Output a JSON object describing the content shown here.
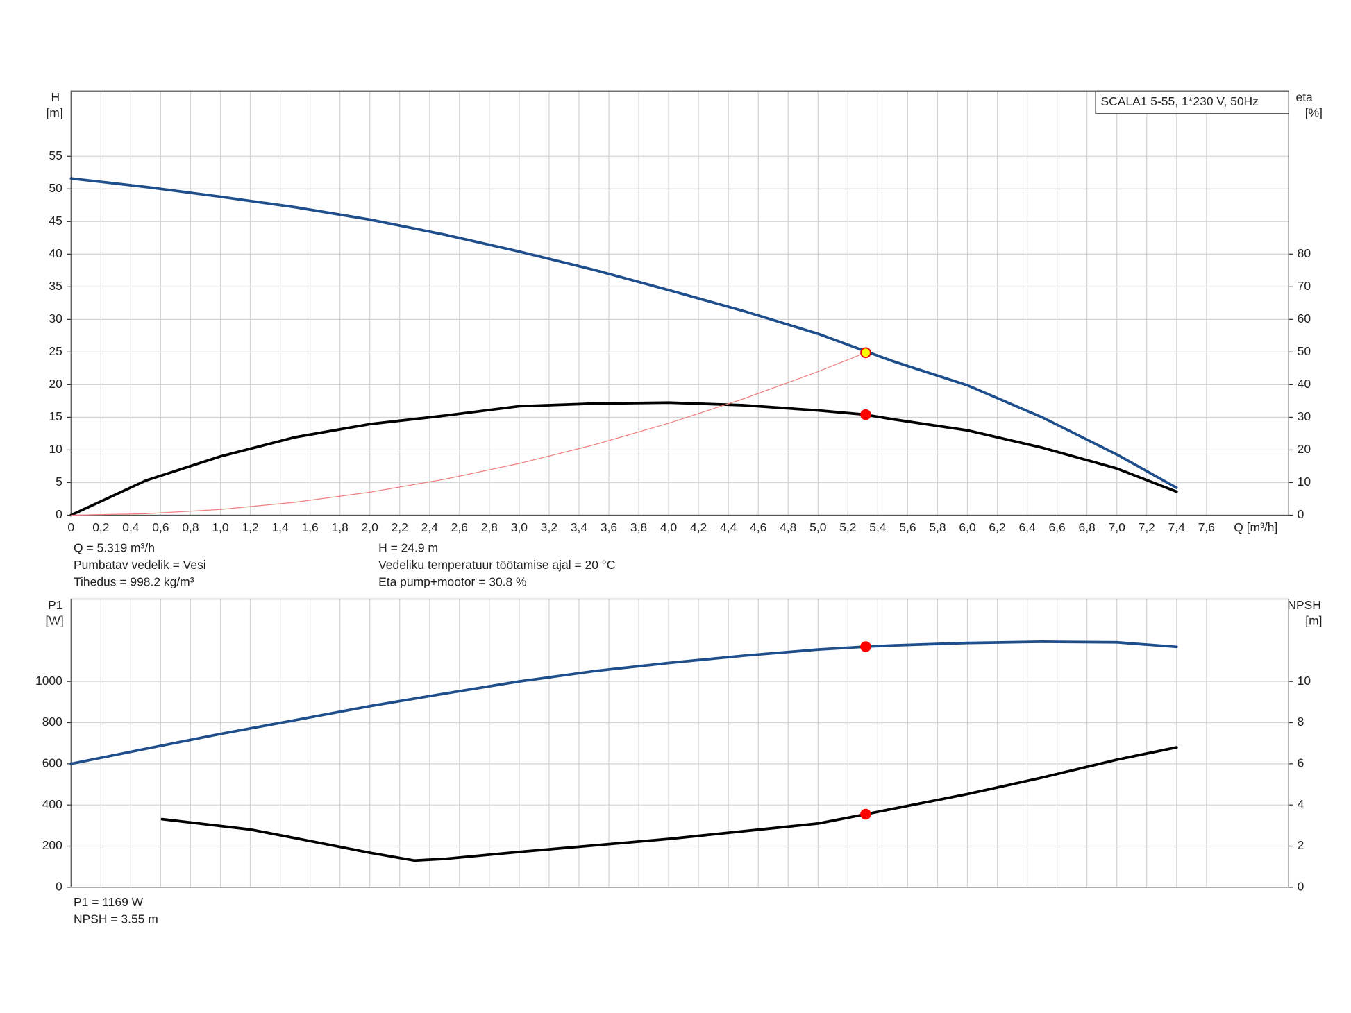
{
  "chart_data": [
    {
      "type": "line",
      "y_label": [
        "H",
        "[m]"
      ],
      "y2_label": [
        "eta",
        "[%]"
      ],
      "x_label": "Q [m³/h]",
      "model_label": "SCALA1 5-55, 1*230 V, 50Hz",
      "xlim": [
        0,
        8.15
      ],
      "xticks": [
        0,
        {
          "value": 0.2,
          "label": "0,2"
        },
        {
          "value": 0.4,
          "label": "0,4"
        },
        {
          "value": 0.6,
          "label": "0,6"
        },
        {
          "value": 0.8,
          "label": "0,8"
        },
        {
          "value": 1.0,
          "label": "1,0"
        },
        {
          "value": 1.2,
          "label": "1,2"
        },
        {
          "value": 1.4,
          "label": "1,4"
        },
        {
          "value": 1.6,
          "label": "1,6"
        },
        {
          "value": 1.8,
          "label": "1,8"
        },
        {
          "value": 2.0,
          "label": "2,0"
        },
        {
          "value": 2.2,
          "label": "2,2"
        },
        {
          "value": 2.4,
          "label": "2,4"
        },
        {
          "value": 2.6,
          "label": "2,6"
        },
        {
          "value": 2.8,
          "label": "2,8"
        },
        {
          "value": 3.0,
          "label": "3,0"
        },
        {
          "value": 3.2,
          "label": "3,2"
        },
        {
          "value": 3.4,
          "label": "3,4"
        },
        {
          "value": 3.6,
          "label": "3,6"
        },
        {
          "value": 3.8,
          "label": "3,8"
        },
        {
          "value": 4.0,
          "label": "4,0"
        },
        {
          "value": 4.2,
          "label": "4,2"
        },
        {
          "value": 4.4,
          "label": "4,4"
        },
        {
          "value": 4.6,
          "label": "4,6"
        },
        {
          "value": 4.8,
          "label": "4,8"
        },
        {
          "value": 5.0,
          "label": "5,0"
        },
        {
          "value": 5.2,
          "label": "5,2"
        },
        {
          "value": 5.4,
          "label": "5,4"
        },
        {
          "value": 5.6,
          "label": "5,6"
        },
        {
          "value": 5.8,
          "label": "5,8"
        },
        {
          "value": 6.0,
          "label": "6,0"
        },
        {
          "value": 6.2,
          "label": "6,2"
        },
        {
          "value": 6.4,
          "label": "6,4"
        },
        {
          "value": 6.6,
          "label": "6,6"
        },
        {
          "value": 6.8,
          "label": "6,8"
        },
        {
          "value": 7.0,
          "label": "7,0"
        },
        {
          "value": 7.2,
          "label": "7,2"
        },
        {
          "value": 7.4,
          "label": "7,4"
        },
        {
          "value": 7.6,
          "label": "7,6"
        }
      ],
      "ylim": [
        0,
        65
      ],
      "yticks": [
        0,
        5,
        10,
        15,
        20,
        25,
        30,
        35,
        40,
        45,
        50,
        55
      ],
      "y2lim": [
        0,
        130
      ],
      "y2ticks": [
        0,
        10,
        20,
        30,
        40,
        50,
        60,
        70,
        80
      ],
      "grid": true,
      "series": [
        {
          "color": "#1f4e8c",
          "width": 3,
          "x": [
            0,
            0.5,
            1,
            1.5,
            2,
            2.5,
            3,
            3.5,
            4,
            4.5,
            5,
            5.5,
            6,
            6.5,
            7,
            7.4
          ],
          "values": [
            51.6,
            50.3,
            48.8,
            47.2,
            45.3,
            43.0,
            40.4,
            37.6,
            34.5,
            31.3,
            27.8,
            23.6,
            19.9,
            15.0,
            9.3,
            4.2
          ]
        },
        {
          "color": "#000000",
          "width": 3,
          "axis": "y2",
          "x": [
            0,
            0.5,
            1,
            1.5,
            2,
            2.5,
            3,
            3.5,
            4,
            4.5,
            5,
            5.319,
            5.5,
            6,
            6.5,
            7,
            7.4
          ],
          "values": [
            0,
            10.6,
            18.0,
            23.9,
            27.9,
            30.5,
            33.4,
            34.2,
            34.5,
            33.7,
            32.1,
            30.8,
            29.4,
            26.0,
            20.7,
            14.3,
            7.2
          ]
        },
        {
          "color": "#f08080",
          "width": 1,
          "x": [
            0,
            0.5,
            1,
            1.5,
            2,
            2.5,
            3,
            3.5,
            4,
            4.5,
            5,
            5.319
          ],
          "values": [
            0,
            0.22,
            0.88,
            1.98,
            3.52,
            5.5,
            7.92,
            10.78,
            14.08,
            17.82,
            22.0,
            24.9
          ]
        }
      ],
      "markers": [
        {
          "x": 5.319,
          "y": 24.9,
          "color": "#ffff00",
          "edge": "#e00000"
        },
        {
          "x": 5.319,
          "y": 30.8,
          "axis": "y2",
          "color": "#ff0000",
          "edge": "#ff0000"
        }
      ],
      "info_left": [
        "Q = 5.319 m³/h",
        "Pumbatav vedelik = Vesi",
        "Tihedus = 998.2 kg/m³"
      ],
      "info_right": [
        "H = 24.9 m",
        "Vedeliku temperatuur töötamise ajal = 20 °C",
        "Eta pump+mootor = 30.8 %"
      ]
    },
    {
      "type": "line",
      "y_label": [
        "P1",
        "[W]"
      ],
      "y2_label": [
        "NPSH",
        "[m]"
      ],
      "xlim": [
        0,
        8.15
      ],
      "xticks": [
        0,
        0.2,
        0.4,
        0.6,
        0.8,
        1.0,
        1.2,
        1.4,
        1.6,
        1.8,
        2.0,
        2.2,
        2.4,
        2.6,
        2.8,
        3.0,
        3.2,
        3.4,
        3.6,
        3.8,
        4.0,
        4.2,
        4.4,
        4.6,
        4.8,
        5.0,
        5.2,
        5.4,
        5.6,
        5.8,
        6.0,
        6.2,
        6.4,
        6.6,
        6.8,
        7.0,
        7.2,
        7.4,
        7.6
      ],
      "ylim": [
        0,
        1400
      ],
      "yticks": [
        0,
        200,
        400,
        600,
        800,
        1000
      ],
      "y2lim": [
        0,
        14
      ],
      "y2ticks": [
        0,
        2,
        4,
        6,
        8,
        10
      ],
      "grid": true,
      "series": [
        {
          "color": "#1f4e8c",
          "width": 3,
          "x": [
            0,
            0.5,
            1,
            1.5,
            2,
            2.5,
            3,
            3.5,
            4,
            4.5,
            5,
            5.319,
            5.5,
            6,
            6.5,
            7,
            7.4
          ],
          "values": [
            600,
            673,
            745,
            812,
            880,
            941,
            1000,
            1050,
            1090,
            1125,
            1155,
            1169,
            1175,
            1187,
            1193,
            1190,
            1168
          ]
        },
        {
          "color": "#000000",
          "width": 3,
          "axis": "y2",
          "x": [
            0.61,
            1.2,
            1.5,
            2.0,
            2.3,
            2.5,
            3,
            4,
            5,
            5.319,
            6,
            6.5,
            7,
            7.4
          ],
          "values": [
            3.31,
            2.81,
            2.39,
            1.68,
            1.3,
            1.38,
            1.72,
            2.35,
            3.1,
            3.55,
            4.53,
            5.33,
            6.2,
            6.8
          ]
        }
      ],
      "markers": [
        {
          "x": 5.319,
          "y": 1169,
          "color": "#ff0000",
          "edge": "#ff0000"
        },
        {
          "x": 5.319,
          "y": 3.55,
          "axis": "y2",
          "color": "#ff0000",
          "edge": "#ff0000"
        }
      ],
      "info": [
        "P1 = 1169 W",
        "NPSH = 3.55 m"
      ]
    }
  ]
}
